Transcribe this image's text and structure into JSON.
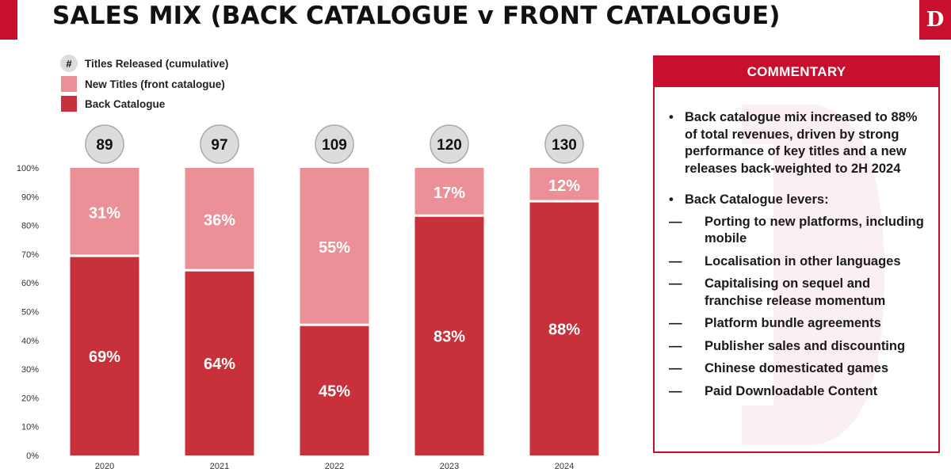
{
  "title": "SALES MIX (BACK CATALOGUE v FRONT CATALOGUE)",
  "logo_letter": "D",
  "legend": {
    "titles_marker": "#",
    "titles_label": "Titles Released (cumulative)",
    "new_label": "New Titles (front catalogue)",
    "back_label": "Back Catalogue"
  },
  "colors": {
    "back": "#c8303a",
    "new": "#eb9096",
    "accent": "#c8102e",
    "bubble": "#dcdcdc"
  },
  "chart_data": {
    "type": "bar",
    "stacked": true,
    "categories": [
      "2020",
      "2021",
      "2022",
      "2023",
      "2024"
    ],
    "series": [
      {
        "name": "Back Catalogue",
        "values": [
          69,
          64,
          45,
          83,
          88
        ]
      },
      {
        "name": "New Titles (front catalogue)",
        "values": [
          31,
          36,
          55,
          17,
          12
        ]
      }
    ],
    "titles_released": [
      89,
      97,
      109,
      120,
      130
    ],
    "ylim": [
      0,
      100
    ],
    "yticks": [
      "0%",
      "10%",
      "20%",
      "30%",
      "40%",
      "50%",
      "60%",
      "70%",
      "80%",
      "90%",
      "100%"
    ],
    "value_suffix": "%",
    "legend_position": "top-left"
  },
  "commentary": {
    "heading": "COMMENTARY",
    "bullet_mark": "•",
    "sub_mark": "—",
    "bullets": [
      {
        "text": "Back catalogue mix increased to 88% of total revenues, driven by strong performance of key titles and a new releases back-weighted to 2H 2024"
      },
      {
        "text": "Back Catalogue levers:",
        "subs": [
          "Porting to new platforms, including mobile",
          "Localisation in other languages",
          "Capitalising on sequel and franchise release momentum",
          "Platform bundle agreements",
          "Publisher sales and discounting",
          "Chinese domesticated games",
          "Paid Downloadable Content"
        ]
      }
    ]
  }
}
